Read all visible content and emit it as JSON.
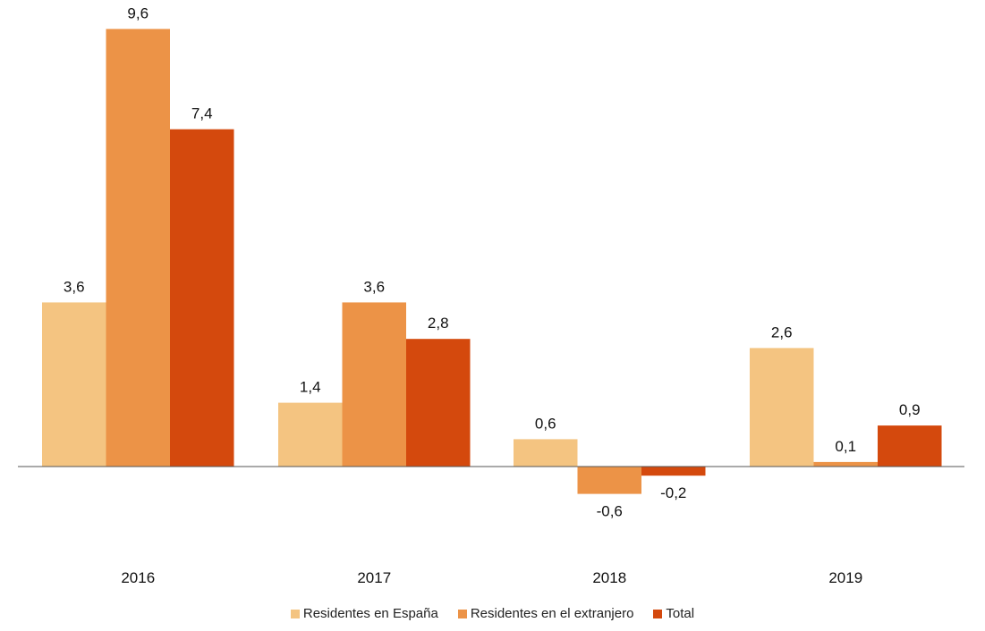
{
  "chart_data": {
    "type": "bar",
    "categories": [
      "2016",
      "2017",
      "2018",
      "2019"
    ],
    "series": [
      {
        "name": "Residentes en España",
        "values": [
          3.6,
          1.4,
          0.6,
          2.6
        ],
        "labels": [
          "3,6",
          "1,4",
          "0,6",
          "2,6"
        ],
        "color": "#f4c481"
      },
      {
        "name": "Residentes en el extranjero",
        "values": [
          9.6,
          3.6,
          -0.6,
          0.1
        ],
        "labels": [
          "9,6",
          "3,6",
          "-0,6",
          "0,1"
        ],
        "color": "#ec9347"
      },
      {
        "name": "Total",
        "values": [
          7.4,
          2.8,
          -0.2,
          0.9
        ],
        "labels": [
          "7,4",
          "2,8",
          "-0,2",
          "0,9"
        ],
        "color": "#d4490d"
      }
    ],
    "legend_position": "bottom",
    "grid": false
  }
}
